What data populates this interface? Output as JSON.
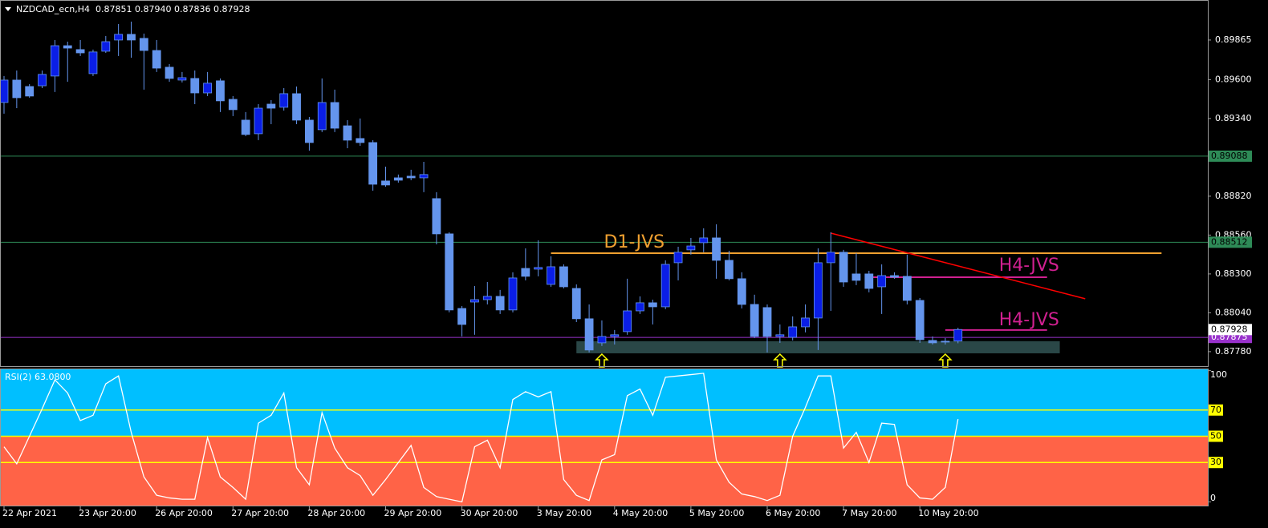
{
  "chart_data": [
    {
      "type": "candlestick",
      "title": "NZDCAD_ecn,H4",
      "subtitle": "0.87851 0.87940 0.87836 0.87928",
      "categories": [
        "22 Apr 2021",
        null,
        null,
        null,
        null,
        null,
        "23 Apr 20:00",
        null,
        null,
        null,
        null,
        null,
        "26 Apr 20:00",
        null,
        null,
        null,
        null,
        null,
        "27 Apr 20:00",
        null,
        null,
        null,
        null,
        null,
        "28 Apr 20:00",
        null,
        null,
        null,
        null,
        null,
        "29 Apr 20:00",
        null,
        null,
        null,
        null,
        null,
        "30 Apr 20:00",
        null,
        null,
        null,
        null,
        null,
        "3 May 20:00",
        null,
        null,
        null,
        null,
        null,
        "4 May 20:00",
        null,
        null,
        null,
        null,
        null,
        "5 May 20:00",
        null,
        null,
        null,
        null,
        null,
        "6 May 20:00",
        null,
        null,
        null,
        null,
        null,
        "7 May 20:00",
        null,
        null,
        null,
        null,
        null,
        "10 May 20:00",
        null,
        null,
        null
      ],
      "open": [
        0.89447,
        0.89597,
        0.89554,
        0.89559,
        0.89624,
        0.89827,
        0.89801,
        0.8964,
        0.8979,
        0.89865,
        0.89903,
        0.89876,
        0.89795,
        0.89683,
        0.89597,
        0.89608,
        0.89511,
        0.89592,
        0.89468,
        0.89329,
        0.89238,
        0.89436,
        0.89415,
        0.89506,
        0.89329,
        0.89265,
        0.89447,
        0.89291,
        0.89206,
        0.89179,
        0.88922,
        0.88943,
        0.88954,
        0.88943,
        0.88804,
        0.88568,
        0.88069,
        0.88112,
        0.88128,
        0.8815,
        0.88059,
        0.88337,
        0.88332,
        0.8823,
        0.88348,
        0.88203,
        0.88,
        0.87839,
        0.87882,
        0.87914,
        0.88053,
        0.88107,
        0.8808,
        0.88375,
        0.88461,
        0.88509,
        0.88541,
        0.88391,
        0.88268,
        0.88096,
        0.88075,
        0.87882,
        0.87876,
        0.87946,
        0.88005,
        0.88375,
        0.88445,
        0.883,
        0.883,
        0.88214,
        0.88289,
        0.88284,
        0.88123,
        0.87855,
        0.8785,
        0.87851
      ],
      "high": [
        0.89624,
        0.89661,
        0.8957,
        0.89661,
        0.89865,
        0.89854,
        0.89865,
        0.89801,
        0.89892,
        0.89972,
        0.89988,
        0.89908,
        0.89865,
        0.89704,
        0.89651,
        0.89661,
        0.89651,
        0.89608,
        0.8949,
        0.89383,
        0.89436,
        0.89463,
        0.89543,
        0.89554,
        0.8935,
        0.89608,
        0.89533,
        0.89329,
        0.8934,
        0.89195,
        0.89018,
        0.88965,
        0.88997,
        0.8905,
        0.88847,
        0.88579,
        0.88085,
        0.88219,
        0.88246,
        0.88193,
        0.88311,
        0.88471,
        0.88525,
        0.88418,
        0.88364,
        0.8823,
        0.88096,
        0.87989,
        0.87925,
        0.88268,
        0.8815,
        0.88128,
        0.88391,
        0.88482,
        0.88541,
        0.88605,
        0.88632,
        0.88455,
        0.88311,
        0.88161,
        0.88096,
        0.87962,
        0.88016,
        0.88096,
        0.88471,
        0.88579,
        0.88461,
        0.88439,
        0.88321,
        0.88364,
        0.88311,
        0.88429,
        0.88139,
        0.87882,
        0.87871,
        0.8794
      ],
      "low": [
        0.89372,
        0.89409,
        0.89479,
        0.89543,
        0.89517,
        0.89586,
        0.89758,
        0.89624,
        0.89779,
        0.89758,
        0.89747,
        0.89533,
        0.89651,
        0.89586,
        0.89581,
        0.89436,
        0.8949,
        0.89383,
        0.89356,
        0.89222,
        0.89195,
        0.89302,
        0.89393,
        0.89302,
        0.89125,
        0.89249,
        0.89249,
        0.89141,
        0.89157,
        0.88857,
        0.88884,
        0.88911,
        0.88927,
        0.88847,
        0.88498,
        0.88043,
        0.87882,
        0.87893,
        0.88096,
        0.88032,
        0.88043,
        0.88257,
        0.88284,
        0.88214,
        0.88203,
        0.87978,
        0.87775,
        0.87818,
        0.87828,
        0.87893,
        0.88032,
        0.87962,
        0.88064,
        0.88257,
        0.88429,
        0.88445,
        0.88268,
        0.88257,
        0.88069,
        0.87871,
        0.87775,
        0.87839,
        0.87855,
        0.87909,
        0.87791,
        0.88053,
        0.88214,
        0.88225,
        0.88177,
        0.88032,
        0.88268,
        0.88096,
        0.87839,
        0.87828,
        0.87828,
        0.87836
      ],
      "close": [
        0.89597,
        0.89479,
        0.8949,
        0.89635,
        0.89827,
        0.89811,
        0.89779,
        0.89785,
        0.89854,
        0.89903,
        0.89865,
        0.89795,
        0.89677,
        0.89608,
        0.89613,
        0.89511,
        0.89576,
        0.89458,
        0.89399,
        0.89233,
        0.89409,
        0.89409,
        0.89506,
        0.89329,
        0.89179,
        0.89447,
        0.89275,
        0.89195,
        0.89179,
        0.889,
        0.88895,
        0.88927,
        0.88943,
        0.88965,
        0.88568,
        0.88059,
        0.87962,
        0.88128,
        0.8815,
        0.88059,
        0.88273,
        0.88284,
        0.88343,
        0.88348,
        0.88214,
        0.88,
        0.87791,
        0.87882,
        0.87893,
        0.88053,
        0.88107,
        0.8808,
        0.88364,
        0.88445,
        0.88487,
        0.88541,
        0.88391,
        0.88268,
        0.88096,
        0.87882,
        0.87882,
        0.87893,
        0.87946,
        0.88005,
        0.88375,
        0.88445,
        0.88246,
        0.88257,
        0.88203,
        0.88289,
        0.88278,
        0.88123,
        0.8786,
        0.87839,
        0.87844,
        0.87928
      ],
      "up_color": "#0a1ee6",
      "down_color": "#6495ed",
      "ylim": [
        0.87683,
        0.90122
      ],
      "yticks": [
        0.89865,
        {
          "value": 0.896,
          "label": "0.89600"
        },
        {
          "value": 0.8934,
          "label": "0.89340"
        },
        {
          "value": 0.8882,
          "label": "0.88820"
        },
        {
          "value": 0.8856,
          "label": "0.88560"
        },
        {
          "value": 0.883,
          "label": "0.88300"
        },
        {
          "value": 0.8804,
          "label": "0.88040"
        },
        {
          "value": 0.8778,
          "label": "0.87780"
        }
      ],
      "levels": [
        {
          "value": 0.89088,
          "color": "#2e8b57"
        },
        {
          "value": 0.88512,
          "color": "#2e8b57"
        },
        {
          "value": 0.87875,
          "color": "#9932cc"
        }
      ],
      "last_price": {
        "value": 0.87928,
        "color": "#ffffff"
      },
      "zone": {
        "start": 45,
        "end": 83,
        "low": 0.87769,
        "high": 0.8785,
        "color": "#2f4f4f"
      },
      "annotations": [
        {
          "label": "D1-JVS",
          "value": 0.88439,
          "start": 43,
          "end": 91,
          "color": "#f0a030"
        },
        {
          "label": "H4-JVS",
          "value": 0.88278,
          "start": 68,
          "end": 82,
          "color": "#d02090"
        },
        {
          "label": "H4-JVS",
          "value": 0.87925,
          "start": 74,
          "end": 82,
          "color": "#d02090"
        }
      ],
      "trendline": {
        "start": 65,
        "end": 85,
        "values": [
          0.88573,
          0.88134
        ],
        "color": "#ff0000"
      },
      "arrows": {
        "positions": [
          47,
          61,
          74
        ],
        "color": "#ffff00"
      }
    },
    {
      "type": "line",
      "title": "RSI(2) 63.0800",
      "values": [
        42,
        29,
        50,
        71,
        93,
        83,
        62,
        66,
        90,
        96,
        53,
        19,
        5,
        3,
        2,
        2,
        49,
        19,
        11,
        2,
        60,
        66,
        83,
        26,
        13,
        68,
        41,
        26,
        20,
        5,
        17,
        30,
        43,
        11,
        4,
        2,
        0,
        42,
        47,
        26,
        78,
        84,
        80,
        84,
        17,
        5,
        1,
        32,
        36,
        81,
        86,
        66,
        95,
        96,
        97,
        98,
        32,
        15,
        6,
        4,
        1,
        5,
        50,
        72,
        96,
        96,
        41,
        53,
        30,
        60,
        59,
        13,
        3,
        2,
        11,
        63.08
      ],
      "color": "#ffffff",
      "ylim": [
        -1,
        101
      ],
      "yticks": [
        0,
        30,
        50,
        70,
        100
      ],
      "levels": [
        30,
        50,
        70
      ],
      "level_color": "#ffff00",
      "upper_color": "#00bfff",
      "lower_color": "#ff6347"
    }
  ]
}
